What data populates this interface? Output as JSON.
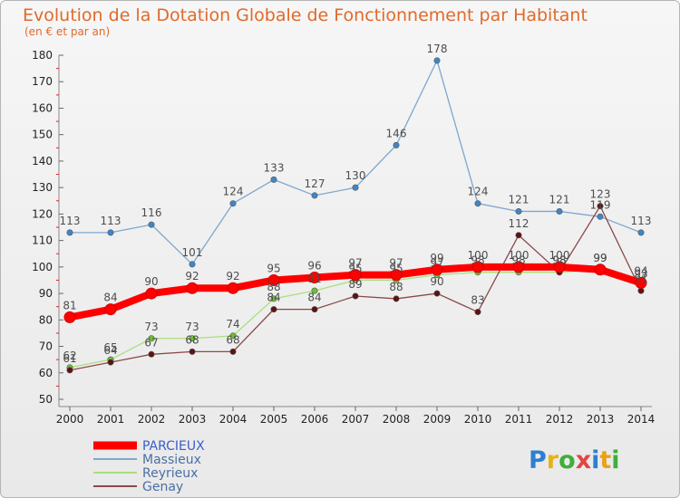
{
  "chart_data": {
    "type": "line",
    "title": "Evolution de la Dotation Globale de Fonctionnement par Habitant",
    "subtitle": "(en € et par an)",
    "x": [
      "2000",
      "2001",
      "2002",
      "2003",
      "2004",
      "2005",
      "2006",
      "2007",
      "2008",
      "2009",
      "2010",
      "2011",
      "2012",
      "2013",
      "2014"
    ],
    "ylim": [
      50,
      180
    ],
    "yticks": [
      50,
      60,
      70,
      80,
      90,
      100,
      110,
      120,
      130,
      140,
      150,
      160,
      170,
      180
    ],
    "series": [
      {
        "name": "PARCIEUX",
        "color": "#ff0000",
        "marker": "#ff0000",
        "values": [
          81,
          84,
          90,
          92,
          92,
          95,
          96,
          97,
          97,
          99,
          100,
          100,
          100,
          99,
          94
        ]
      },
      {
        "name": "Massieux",
        "color": "#7da7cf",
        "marker": "#3f86c8",
        "values": [
          113,
          113,
          116,
          101,
          124,
          133,
          127,
          130,
          146,
          178,
          124,
          121,
          121,
          119,
          113
        ]
      },
      {
        "name": "Reyrieux",
        "color": "#a8e07a",
        "marker": "#6cc22e",
        "values": [
          62,
          65,
          73,
          73,
          74,
          88,
          91,
          95,
          95,
          97,
          98,
          98,
          98,
          99,
          93
        ]
      },
      {
        "name": "Genay",
        "color": "#8a4a4a",
        "marker": "#5e1212",
        "values": [
          61,
          64,
          67,
          68,
          68,
          84,
          84,
          89,
          88,
          90,
          83,
          112,
          98,
          123,
          91
        ]
      }
    ]
  },
  "logo": {
    "text": "Proxiti"
  }
}
